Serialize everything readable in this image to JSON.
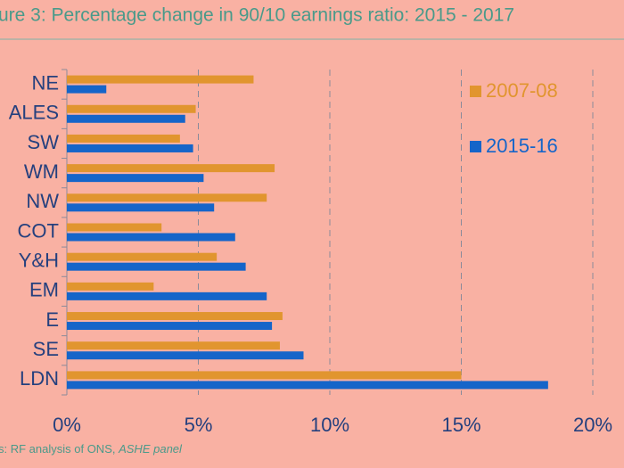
{
  "chart_data": {
    "type": "bar",
    "orientation": "horizontal",
    "title": "ure 3:  Percentage change in 90/10 earnings ratio: 2015 - 2017",
    "categories": [
      "NE",
      "ALES",
      "SW",
      "WM",
      "NW",
      "COT",
      "Y&H",
      "EM",
      "E",
      "SE",
      "LDN"
    ],
    "series": [
      {
        "name": "2007-08",
        "color": "#e1952f",
        "values": [
          7.1,
          4.9,
          4.3,
          7.9,
          7.6,
          3.6,
          5.7,
          3.3,
          8.2,
          8.1,
          15.0
        ]
      },
      {
        "name": "2015-16",
        "color": "#1565c9",
        "values": [
          1.5,
          4.5,
          4.8,
          5.2,
          5.6,
          6.4,
          6.8,
          7.6,
          7.8,
          9.0,
          18.3
        ]
      }
    ],
    "xlim": [
      0,
      20
    ],
    "xticks": [
      {
        "value": 0,
        "label": "0%"
      },
      {
        "value": 5,
        "label": "5%"
      },
      {
        "value": 10,
        "label": "10%"
      },
      {
        "value": 15,
        "label": "15%"
      },
      {
        "value": 20,
        "label": "20%"
      }
    ],
    "grid": true,
    "legend": "top-right",
    "source": [
      "s: RF analysis of ONS, ",
      "ASHE panel"
    ]
  }
}
